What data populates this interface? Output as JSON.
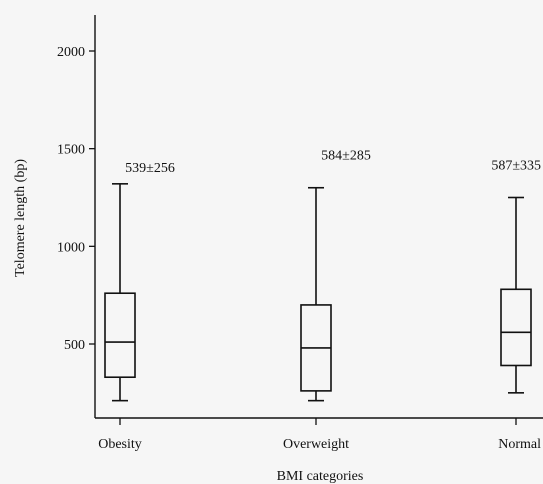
{
  "chart_data": {
    "type": "box",
    "title": "",
    "xlabel": "BMI categories",
    "ylabel": "Telomere length (bp)",
    "ylim": [
      0,
      2200
    ],
    "yticks": [
      500,
      1000,
      1500,
      2000
    ],
    "grid": false,
    "categories": [
      "Obesity",
      "Overweight",
      "Normal"
    ],
    "boxes": [
      {
        "min": 210,
        "q1": 330,
        "median": 510,
        "q3": 760,
        "max": 1320,
        "label": "539±256"
      },
      {
        "min": 210,
        "q1": 260,
        "median": 480,
        "q3": 700,
        "max": 1300,
        "label": "584±285"
      },
      {
        "min": 250,
        "q1": 390,
        "median": 560,
        "q3": 780,
        "max": 1250,
        "label": "587±335"
      }
    ]
  }
}
